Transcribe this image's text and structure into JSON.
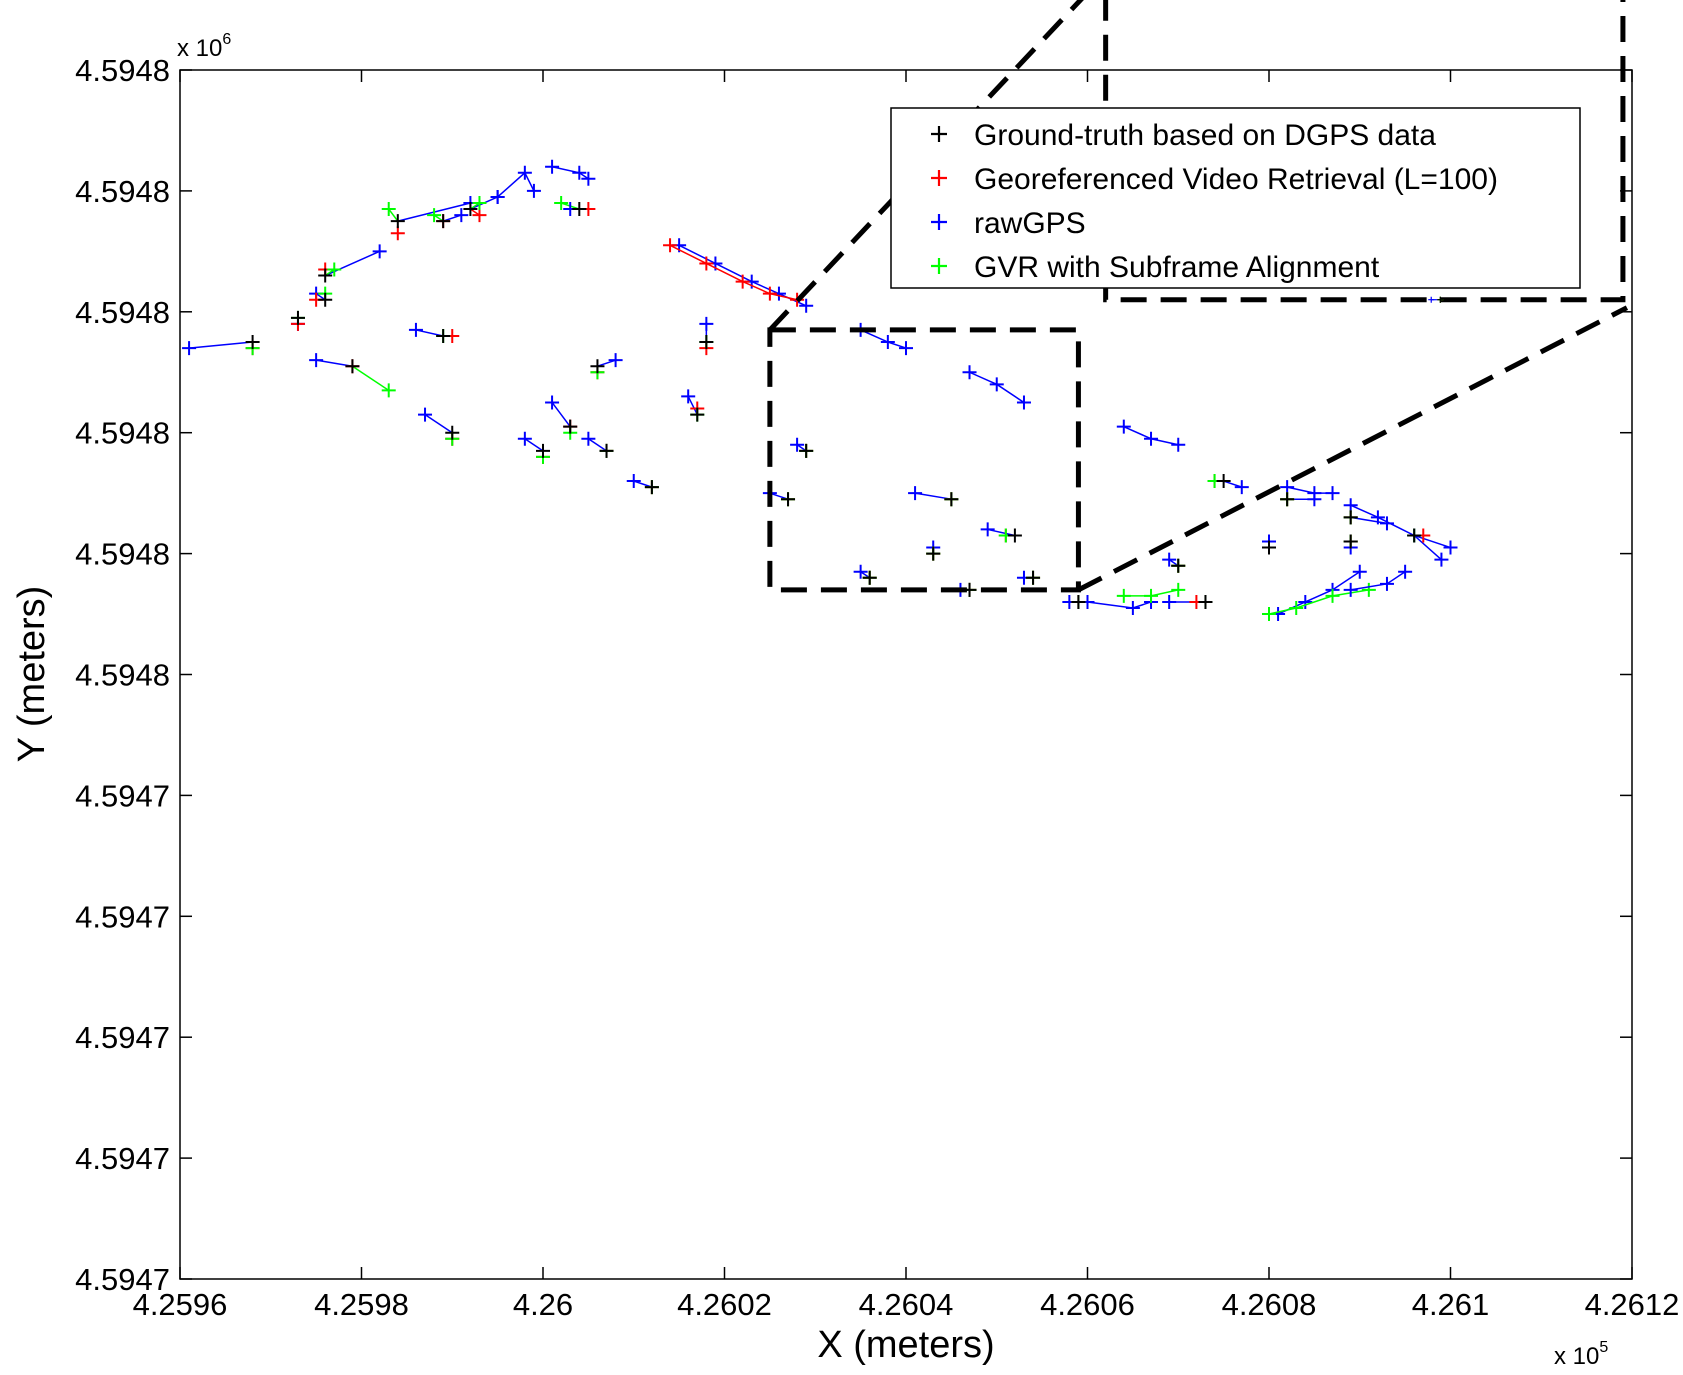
{
  "chart_data": {
    "type": "scatter",
    "xlabel": "X (meters)",
    "ylabel": "Y (meters)",
    "x_multiplier": {
      "base": "x 10",
      "exponent": "5"
    },
    "y_multiplier": {
      "base": "x 10",
      "exponent": "6"
    },
    "xlim": [
      4.2596,
      4.2612
    ],
    "ylim": [
      4.59465,
      4.59485
    ],
    "x_ticks": [
      4.2596,
      4.2598,
      4.26,
      4.2602,
      4.2604,
      4.2606,
      4.2608,
      4.261,
      4.2612
    ],
    "x_tick_labels": [
      "4.2596",
      "4.2598",
      "4.26",
      "4.2602",
      "4.2604",
      "4.2606",
      "4.2608",
      "4.261",
      "4.2612"
    ],
    "y_ticks": [
      4.59465,
      4.59467,
      4.59469,
      4.59471,
      4.59473,
      4.59475,
      4.59477,
      4.59479,
      4.59481,
      4.59483,
      4.59485
    ],
    "y_tick_labels": [
      "4.5947",
      "4.5947",
      "4.5947",
      "4.5947",
      "4.5947",
      "4.5948",
      "4.5948",
      "4.5948",
      "4.5948",
      "4.5948",
      "4.5948"
    ],
    "legend": {
      "position": "top-right",
      "entries": [
        {
          "label": "Ground-truth based on DGPS data",
          "color": "#000000"
        },
        {
          "label": "Georeferenced Video Retrieval (L=100)",
          "color": "#ff0000"
        },
        {
          "label": "rawGPS",
          "color": "#0000ff"
        },
        {
          "label": "GVR with Subframe Alignment",
          "color": "#00ff00"
        }
      ]
    },
    "series_colors": {
      "ground_truth": "#000000",
      "gvr": "#ff0000",
      "raw_gps": "#0000ff",
      "gvr_subframe": "#00ff00"
    },
    "groups": [
      {
        "gt": [
          4.25984,
          4.594825
        ],
        "gvr": [
          4.25984,
          4.594823
        ],
        "raw": [
          4.25992,
          4.594828
        ],
        "sub": [
          4.25983,
          4.594827
        ]
      },
      {
        "gt": [
          4.25989,
          4.594825
        ],
        "gvr": [
          4.25989,
          4.594825
        ],
        "raw": [
          4.25991,
          4.594826
        ],
        "sub": [
          4.25988,
          4.594826
        ]
      },
      {
        "gt": [
          4.25992,
          4.594827
        ],
        "gvr": [
          4.25993,
          4.594826
        ],
        "raw": [
          4.25995,
          4.594829
        ],
        "sub": [
          4.25993,
          4.594828
        ]
      },
      {
        "gt": [
          4.26004,
          4.594827
        ],
        "gvr": [
          4.26005,
          4.594827
        ],
        "raw": [
          4.26003,
          4.594827
        ],
        "sub": [
          4.26002,
          4.594828
        ]
      },
      {
        "gt": [
          4.25976,
          4.594816
        ],
        "gvr": [
          4.25976,
          4.594817
        ],
        "raw": [
          4.25982,
          4.59482
        ],
        "sub": [
          4.25977,
          4.594817
        ]
      },
      {
        "gt": [
          4.25976,
          4.594812
        ],
        "gvr": [
          4.25975,
          4.594812
        ],
        "raw": [
          4.25975,
          4.594813
        ],
        "sub": [
          4.25976,
          4.594813
        ]
      },
      {
        "gt": [
          4.25973,
          4.594809
        ],
        "gvr": [
          4.25973,
          4.594808
        ],
        "raw": [
          4.25973,
          4.594808
        ],
        "sub": [
          4.25973,
          4.594809
        ]
      },
      {
        "gt": [
          4.25968,
          4.594805
        ],
        "gvr": [
          4.25968,
          4.594804
        ],
        "raw": [
          4.25961,
          4.594804
        ],
        "sub": [
          4.25968,
          4.594804
        ]
      },
      {
        "gt": [
          4.25979,
          4.594801
        ],
        "gvr": [
          4.25979,
          4.594801
        ],
        "raw": [
          4.25975,
          4.594802
        ],
        "sub": [
          4.25983,
          4.594797
        ]
      },
      {
        "gt": [
          4.25989,
          4.594806
        ],
        "gvr": [
          4.2599,
          4.594806
        ],
        "raw": [
          4.25986,
          4.594807
        ],
        "sub": [
          4.25989,
          4.594806
        ]
      },
      {
        "gt": [
          4.2599,
          4.59479
        ],
        "gvr": [
          4.2599,
          4.594789
        ],
        "raw": [
          4.25987,
          4.594793
        ],
        "sub": [
          4.2599,
          4.594789
        ]
      },
      {
        "gt": [
          4.26003,
          4.594791
        ],
        "gvr": [
          4.26003,
          4.594791
        ],
        "raw": [
          4.26001,
          4.594795
        ],
        "sub": [
          4.26003,
          4.59479
        ]
      },
      {
        "gt": [
          4.26,
          4.594787
        ],
        "gvr": [
          4.26,
          4.594786
        ],
        "raw": [
          4.25998,
          4.594789
        ],
        "sub": [
          4.26,
          4.594786
        ]
      },
      {
        "gt": [
          4.26012,
          4.594781
        ],
        "gvr": [
          4.26012,
          4.594781
        ],
        "raw": [
          4.2601,
          4.594782
        ],
        "sub": [
          4.26012,
          4.594781
        ]
      },
      {
        "gt": [
          4.26006,
          4.594801
        ],
        "gvr": [
          4.26006,
          4.5948
        ],
        "raw": [
          4.26008,
          4.594802
        ],
        "sub": [
          4.26006,
          4.5948
        ]
      },
      {
        "gt": [
          4.26007,
          4.594787
        ],
        "gvr": [
          4.26007,
          4.594787
        ],
        "raw": [
          4.26005,
          4.594789
        ],
        "sub": [
          4.26007,
          4.594787
        ]
      },
      {
        "gt": [
          4.26018,
          4.594805
        ],
        "gvr": [
          4.26018,
          4.594804
        ],
        "raw": [
          4.26018,
          4.594808
        ],
        "sub": [
          4.26018,
          4.594805
        ]
      },
      {
        "gt": [
          4.26017,
          4.594793
        ],
        "gvr": [
          4.26017,
          4.594794
        ],
        "raw": [
          4.26016,
          4.594796
        ],
        "sub": [
          4.26017,
          4.594793
        ]
      },
      {
        "gt": [
          4.26029,
          4.594787
        ],
        "gvr": [
          4.26029,
          4.594787
        ],
        "raw": [
          4.26028,
          4.594788
        ],
        "sub": [
          4.26029,
          4.594787
        ]
      },
      {
        "gt": [
          4.26027,
          4.594779
        ],
        "gvr": [
          4.26027,
          4.594779
        ],
        "raw": [
          4.26025,
          4.59478
        ],
        "sub": [
          4.26027,
          4.594779
        ]
      },
      {
        "gt": [
          4.26045,
          4.594779
        ],
        "gvr": [
          4.26045,
          4.594779
        ],
        "raw": [
          4.26041,
          4.59478
        ],
        "sub": [
          4.26045,
          4.594779
        ]
      },
      {
        "gt": [
          4.26043,
          4.59477
        ],
        "gvr": [
          4.26043,
          4.59477
        ],
        "raw": [
          4.26043,
          4.594771
        ],
        "sub": [
          4.26043,
          4.59477
        ]
      },
      {
        "gt": [
          4.26052,
          4.594773
        ],
        "gvr": [
          4.26051,
          4.594773
        ],
        "raw": [
          4.26049,
          4.594774
        ],
        "sub": [
          4.26051,
          4.594773
        ]
      },
      {
        "gt": [
          4.26036,
          4.594766
        ],
        "gvr": [
          4.26036,
          4.594766
        ],
        "raw": [
          4.26035,
          4.594767
        ],
        "sub": [
          4.26036,
          4.594766
        ]
      },
      {
        "gt": [
          4.26054,
          4.594766
        ],
        "gvr": [
          4.26054,
          4.594766
        ],
        "raw": [
          4.26053,
          4.594766
        ],
        "sub": [
          4.26054,
          4.594766
        ]
      },
      {
        "gt": [
          4.26047,
          4.594764
        ],
        "gvr": [
          4.26047,
          4.594764
        ],
        "raw": [
          4.26046,
          4.594764
        ],
        "sub": [
          4.26047,
          4.594764
        ]
      },
      {
        "gt": [
          4.26059,
          4.594762
        ],
        "gvr": [
          4.26059,
          4.594762
        ],
        "raw": [
          4.26058,
          4.594762
        ],
        "sub": [
          4.26059,
          4.594762
        ]
      },
      {
        "gt": [
          4.26073,
          4.594762
        ],
        "gvr": [
          4.26072,
          4.594762
        ],
        "raw": [
          4.26069,
          4.594762
        ],
        "sub": [
          4.26073,
          4.594762
        ]
      },
      {
        "gt": [
          4.2607,
          4.594768
        ],
        "gvr": [
          4.2607,
          4.594768
        ],
        "raw": [
          4.26069,
          4.594769
        ],
        "sub": [
          4.2607,
          4.594768
        ]
      },
      {
        "gt": [
          4.2608,
          4.594771
        ],
        "gvr": [
          4.2608,
          4.594771
        ],
        "raw": [
          4.2608,
          4.594772
        ],
        "sub": [
          4.2608,
          4.594771
        ]
      },
      {
        "gt": [
          4.26089,
          4.594772
        ],
        "gvr": [
          4.26089,
          4.594772
        ],
        "raw": [
          4.26089,
          4.594771
        ],
        "sub": [
          4.26089,
          4.594772
        ]
      },
      {
        "gt": [
          4.26096,
          4.594773
        ],
        "gvr": [
          4.26097,
          4.594773
        ],
        "raw": [
          4.261,
          4.594771
        ],
        "sub": [
          4.26096,
          4.594773
        ]
      },
      {
        "gt": [
          4.26089,
          4.594776
        ],
        "gvr": [
          4.26089,
          4.594776
        ],
        "raw": [
          4.26093,
          4.594775
        ],
        "sub": [
          4.26089,
          4.594776
        ]
      },
      {
        "gt": [
          4.26082,
          4.594779
        ],
        "gvr": [
          4.26082,
          4.594779
        ],
        "raw": [
          4.26085,
          4.594779
        ],
        "sub": [
          4.26082,
          4.594779
        ]
      },
      {
        "gt": [
          4.26075,
          4.594782
        ],
        "gvr": [
          4.26074,
          4.594782
        ],
        "raw": [
          4.26077,
          4.594781
        ],
        "sub": [
          4.26074,
          4.594782
        ]
      }
    ],
    "trajectories": [
      {
        "series": "raw",
        "points": [
          [
            4.25995,
            4.594829
          ],
          [
            4.25998,
            4.594833
          ],
          [
            4.25999,
            4.59483
          ]
        ]
      },
      {
        "series": "raw",
        "points": [
          [
            4.26001,
            4.594834
          ],
          [
            4.26004,
            4.594833
          ],
          [
            4.26005,
            4.594832
          ]
        ]
      },
      {
        "series": "raw",
        "points": [
          [
            4.26015,
            4.594821
          ],
          [
            4.26019,
            4.594818
          ],
          [
            4.26023,
            4.594815
          ],
          [
            4.26026,
            4.594813
          ],
          [
            4.26029,
            4.594811
          ]
        ]
      },
      {
        "series": "gvr",
        "points": [
          [
            4.26014,
            4.594821
          ],
          [
            4.26018,
            4.594818
          ],
          [
            4.26022,
            4.594815
          ],
          [
            4.26025,
            4.594813
          ],
          [
            4.26028,
            4.594812
          ]
        ]
      },
      {
        "series": "raw",
        "points": [
          [
            4.26035,
            4.594807
          ],
          [
            4.26038,
            4.594805
          ],
          [
            4.2604,
            4.594804
          ]
        ]
      },
      {
        "series": "raw",
        "points": [
          [
            4.26047,
            4.5948
          ],
          [
            4.2605,
            4.594798
          ],
          [
            4.26053,
            4.594795
          ]
        ]
      },
      {
        "series": "raw",
        "points": [
          [
            4.26064,
            4.594791
          ],
          [
            4.26067,
            4.594789
          ],
          [
            4.2607,
            4.594788
          ]
        ]
      },
      {
        "series": "raw",
        "points": [
          [
            4.26082,
            4.594781
          ],
          [
            4.26085,
            4.59478
          ],
          [
            4.26087,
            4.59478
          ]
        ]
      },
      {
        "series": "raw",
        "points": [
          [
            4.26089,
            4.594778
          ],
          [
            4.26092,
            4.594776
          ],
          [
            4.26096,
            4.594773
          ],
          [
            4.26099,
            4.594769
          ]
        ]
      },
      {
        "series": "raw",
        "points": [
          [
            4.26081,
            4.59476
          ],
          [
            4.26084,
            4.594762
          ],
          [
            4.26087,
            4.594764
          ],
          [
            4.2609,
            4.594767
          ]
        ]
      },
      {
        "series": "sub",
        "points": [
          [
            4.2608,
            4.59476
          ],
          [
            4.26083,
            4.594761
          ],
          [
            4.26087,
            4.594763
          ],
          [
            4.26091,
            4.594764
          ]
        ]
      },
      {
        "series": "raw",
        "points": [
          [
            4.26089,
            4.594764
          ],
          [
            4.26093,
            4.594765
          ],
          [
            4.26095,
            4.594767
          ]
        ]
      },
      {
        "series": "raw",
        "points": [
          [
            4.2606,
            4.594762
          ],
          [
            4.26065,
            4.594761
          ],
          [
            4.26067,
            4.594762
          ]
        ]
      },
      {
        "series": "sub",
        "points": [
          [
            4.26064,
            4.594763
          ],
          [
            4.26067,
            4.594763
          ],
          [
            4.2607,
            4.594764
          ]
        ]
      }
    ],
    "annotations": {
      "zoom_source_region": {
        "x": [
          4.26025,
          4.26059
        ],
        "y": [
          4.594764,
          4.594807
        ]
      },
      "zoom_inset_region": {
        "x": [
          4.26062,
          4.26119
        ],
        "y": [
          4.594812,
          4.594866
        ]
      }
    },
    "grid": false
  }
}
